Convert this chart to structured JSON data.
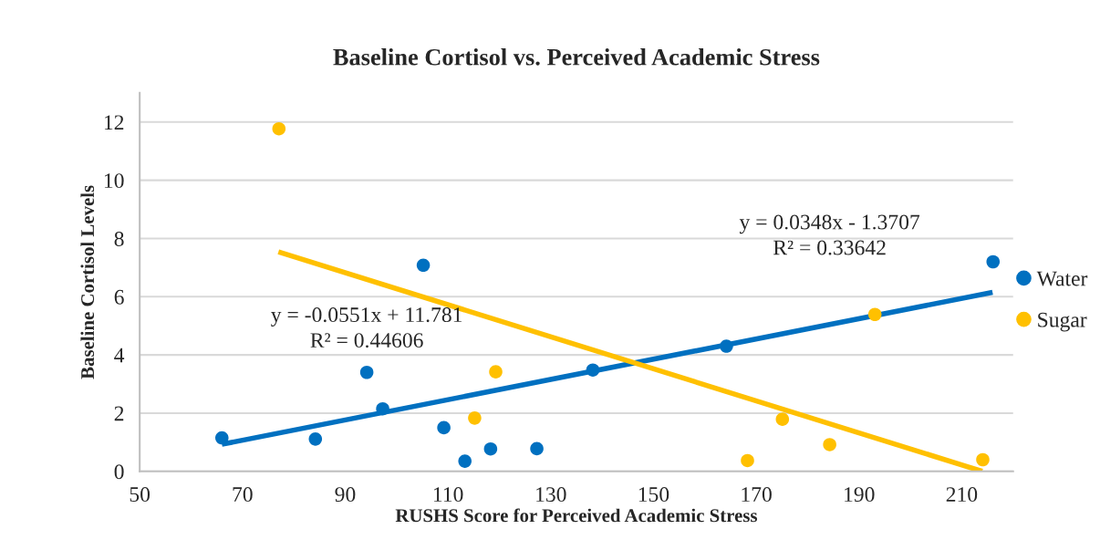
{
  "chart_data": {
    "type": "scatter",
    "title": "Baseline Cortisol vs. Perceived Academic Stress",
    "xlabel": "RUSHS Score for Perceived Academic Stress",
    "ylabel": "Baseline Cortisol Levels",
    "xlim": [
      50,
      220
    ],
    "xticks": [
      50,
      70,
      90,
      110,
      130,
      150,
      170,
      190,
      210
    ],
    "ylim": [
      0,
      13
    ],
    "yticks": [
      0,
      2,
      4,
      6,
      8,
      10,
      12
    ],
    "grid": "y",
    "legend": "right",
    "annotations": [
      "y = -0.0551x + 11.781\nR² = 0.44606",
      "y = 0.0348x - 1.3707\nR² = 0.33642"
    ],
    "series": [
      {
        "name": "Water",
        "marker": "circle",
        "color": "#0070c0",
        "x": [
          66,
          84.2,
          94.2,
          97.3,
          105.2,
          109.2,
          113.3,
          118.3,
          127.3,
          138.2,
          164.2,
          216.1
        ],
        "values": [
          1.15,
          1.11,
          3.4,
          2.15,
          7.08,
          1.5,
          0.35,
          0.77,
          0.78,
          3.48,
          4.3,
          7.2
        ]
      },
      {
        "name": "Sugar",
        "marker": "circle",
        "color": "#ffc000",
        "x": [
          77.1,
          115.2,
          119.3,
          168.3,
          175.1,
          184.3,
          193.1,
          214.1
        ],
        "values": [
          11.77,
          1.83,
          3.42,
          0.37,
          1.79,
          0.92,
          5.39,
          0.4
        ]
      },
      {
        "type": "line",
        "color": "#0070c0",
        "x": [
          66,
          216
        ],
        "values": [
          0.93,
          6.15
        ]
      },
      {
        "type": "line",
        "color": "#ffc000",
        "x": [
          77,
          214
        ],
        "values": [
          7.54,
          0.0
        ]
      }
    ]
  }
}
